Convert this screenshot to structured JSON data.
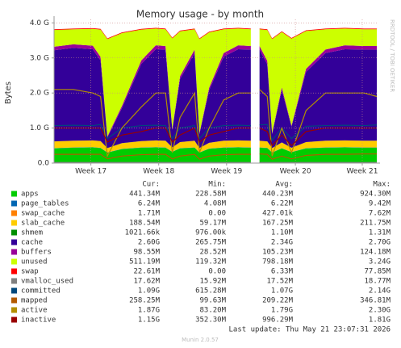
{
  "chart_data": {
    "type": "stacked_area",
    "title": "Memory usage - by month",
    "ylabel": "Bytes",
    "watermark": "RRDTOOL / TOBI OETIKER",
    "last_update": "Last update: Thu May 21 23:07:31 2026",
    "version": "Munin 2.0.57",
    "stat_headers": [
      "Cur:",
      "Min:",
      "Avg:",
      "Max:"
    ],
    "grid": true,
    "xlim": [
      0,
      33.3
    ],
    "xticks": [
      {
        "value": 3.8,
        "label": "Week 17"
      },
      {
        "value": 10.8,
        "label": "Week 18"
      },
      {
        "value": 17.8,
        "label": "Week 19"
      },
      {
        "value": 24.9,
        "label": "Week 20"
      },
      {
        "value": 31.8,
        "label": "Week 21"
      }
    ],
    "ylim": [
      0,
      4100000000.0
    ],
    "yticks": [
      {
        "value": 0,
        "label": "0.0"
      },
      {
        "value": 1000000000.0,
        "label": "1.0 G"
      },
      {
        "value": 2000000000.0,
        "label": "2.0 G"
      },
      {
        "value": 3000000000.0,
        "label": "3.0 G"
      },
      {
        "value": 4000000000.0,
        "label": "4.0 G"
      }
    ],
    "x": [
      0,
      2,
      4,
      4.8,
      5.5,
      7,
      9,
      10.5,
      11.5,
      12.2,
      13,
      14.5,
      15,
      16,
      17.5,
      19,
      20.3,
      20.7,
      21.2,
      22,
      22.5,
      23.5,
      24.5,
      26,
      28,
      30,
      32,
      33.3
    ],
    "series": [
      {
        "name": "apps",
        "color": "#00CC00",
        "kind": "area",
        "cur": "441.34M",
        "min": "228.58M",
        "avg": "440.23M",
        "max": "924.30M",
        "values": [
          420000000.0,
          440000000.0,
          450000000.0,
          430000000.0,
          300000000.0,
          400000000.0,
          440000000.0,
          450000000.0,
          440000000.0,
          320000000.0,
          420000000.0,
          440000000.0,
          300000000.0,
          410000000.0,
          440000000.0,
          450000000.0,
          440000000.0,
          null,
          440000000.0,
          430000000.0,
          300000000.0,
          420000000.0,
          310000000.0,
          420000000.0,
          440000000.0,
          450000000.0,
          440000000.0,
          440000000.0
        ]
      },
      {
        "name": "page_tables",
        "color": "#0066B3",
        "kind": "area",
        "cur": "6.24M",
        "min": "4.08M",
        "avg": "6.22M",
        "max": "9.42M",
        "values": [
          6000000.0,
          6000000.0,
          6000000.0,
          6000000.0,
          6000000.0,
          6000000.0,
          6000000.0,
          6000000.0,
          6000000.0,
          6000000.0,
          6000000.0,
          6000000.0,
          6000000.0,
          6000000.0,
          6000000.0,
          6000000.0,
          6000000.0,
          null,
          6000000.0,
          6000000.0,
          6000000.0,
          6000000.0,
          6000000.0,
          6000000.0,
          6000000.0,
          6000000.0,
          6000000.0,
          6000000.0
        ]
      },
      {
        "name": "swap_cache",
        "color": "#FF8000",
        "kind": "area",
        "cur": "1.71M",
        "min": "0.00",
        "avg": "427.01k",
        "max": "7.62M",
        "values": [
          2000000.0,
          2000000.0,
          2000000.0,
          2000000.0,
          2000000.0,
          2000000.0,
          2000000.0,
          2000000.0,
          2000000.0,
          2000000.0,
          2000000.0,
          2000000.0,
          2000000.0,
          2000000.0,
          2000000.0,
          2000000.0,
          2000000.0,
          null,
          2000000.0,
          2000000.0,
          2000000.0,
          2000000.0,
          2000000.0,
          2000000.0,
          2000000.0,
          2000000.0,
          2000000.0,
          2000000.0
        ]
      },
      {
        "name": "slab_cache",
        "color": "#FFCC00",
        "kind": "area",
        "cur": "188.54M",
        "min": "59.17M",
        "avg": "167.25M",
        "max": "211.75M",
        "values": [
          190000000.0,
          190000000.0,
          190000000.0,
          190000000.0,
          120000000.0,
          160000000.0,
          180000000.0,
          190000000.0,
          190000000.0,
          120000000.0,
          170000000.0,
          190000000.0,
          120000000.0,
          160000000.0,
          190000000.0,
          190000000.0,
          190000000.0,
          null,
          190000000.0,
          180000000.0,
          120000000.0,
          160000000.0,
          120000000.0,
          170000000.0,
          190000000.0,
          190000000.0,
          190000000.0,
          190000000.0
        ]
      },
      {
        "name": "shmem",
        "color": "#008F00",
        "kind": "area",
        "cur": "1021.66k",
        "min": "976.00k",
        "avg": "1.10M",
        "max": "1.31M",
        "values": [
          1000000.0,
          1000000.0,
          1000000.0,
          1000000.0,
          1000000.0,
          1000000.0,
          1000000.0,
          1000000.0,
          1000000.0,
          1000000.0,
          1000000.0,
          1000000.0,
          1000000.0,
          1000000.0,
          1000000.0,
          1000000.0,
          1000000.0,
          null,
          1000000.0,
          1000000.0,
          1000000.0,
          1000000.0,
          1000000.0,
          1000000.0,
          1000000.0,
          1000000.0,
          1000000.0,
          1000000.0
        ]
      },
      {
        "name": "cache",
        "color": "#330099",
        "kind": "area",
        "cur": "2.60G",
        "min": "265.75M",
        "avg": "2.34G",
        "max": "2.70G",
        "values": [
          2600000000.0,
          2650000000.0,
          2600000000.0,
          2300000000.0,
          300000000.0,
          1000000000.0,
          2200000000.0,
          2600000000.0,
          2600000000.0,
          500000000.0,
          1800000000.0,
          2500000000.0,
          400000000.0,
          1500000000.0,
          2400000000.0,
          2600000000.0,
          2600000000.0,
          null,
          2600000000.0,
          2200000000.0,
          400000000.0,
          1500000000.0,
          600000000.0,
          2000000000.0,
          2500000000.0,
          2600000000.0,
          2600000000.0,
          2600000000.0
        ]
      },
      {
        "name": "buffers",
        "color": "#990099",
        "kind": "area",
        "cur": "98.55M",
        "min": "28.52M",
        "avg": "105.23M",
        "max": "124.18M",
        "values": [
          100000000.0,
          100000000.0,
          100000000.0,
          100000000.0,
          30000000.0,
          60000000.0,
          100000000.0,
          110000000.0,
          100000000.0,
          30000000.0,
          80000000.0,
          100000000.0,
          30000000.0,
          70000000.0,
          100000000.0,
          110000000.0,
          100000000.0,
          null,
          100000000.0,
          100000000.0,
          30000000.0,
          70000000.0,
          30000000.0,
          90000000.0,
          100000000.0,
          110000000.0,
          100000000.0,
          100000000.0
        ]
      },
      {
        "name": "unused",
        "color": "#CCFF00",
        "kind": "area",
        "cur": "511.19M",
        "min": "119.32M",
        "avg": "798.18M",
        "max": "3.24G",
        "values": [
          480000000.0,
          430000000.0,
          480000000.0,
          780000000.0,
          2780000000.0,
          2080000000.0,
          880000000.0,
          480000000.0,
          480000000.0,
          2580000000.0,
          1280000000.0,
          580000000.0,
          2680000000.0,
          1580000000.0,
          680000000.0,
          480000000.0,
          480000000.0,
          null,
          480000000.0,
          880000000.0,
          2680000000.0,
          1580000000.0,
          2480000000.0,
          1080000000.0,
          580000000.0,
          480000000.0,
          480000000.0,
          480000000.0
        ]
      },
      {
        "name": "swap",
        "color": "#FF0000",
        "kind": "area",
        "cur": "22.61M",
        "min": "0.00",
        "avg": "6.33M",
        "max": "77.85M",
        "values": [
          20000000.0,
          20000000.0,
          20000000.0,
          20000000.0,
          20000000.0,
          20000000.0,
          20000000.0,
          20000000.0,
          20000000.0,
          20000000.0,
          20000000.0,
          20000000.0,
          20000000.0,
          20000000.0,
          20000000.0,
          20000000.0,
          20000000.0,
          null,
          20000000.0,
          20000000.0,
          20000000.0,
          20000000.0,
          20000000.0,
          20000000.0,
          20000000.0,
          20000000.0,
          20000000.0,
          20000000.0
        ]
      },
      {
        "name": "vmalloc_used",
        "color": "#808080",
        "kind": "line",
        "cur": "17.62M",
        "min": "15.92M",
        "avg": "17.52M",
        "max": "18.77M",
        "values": [
          18000000.0,
          18000000.0,
          18000000.0,
          18000000.0,
          18000000.0,
          18000000.0,
          18000000.0,
          18000000.0,
          18000000.0,
          18000000.0,
          18000000.0,
          18000000.0,
          18000000.0,
          18000000.0,
          18000000.0,
          18000000.0,
          18000000.0,
          null,
          18000000.0,
          18000000.0,
          18000000.0,
          18000000.0,
          18000000.0,
          18000000.0,
          18000000.0,
          18000000.0,
          18000000.0,
          18000000.0
        ]
      },
      {
        "name": "committed",
        "color": "#00487D",
        "kind": "line",
        "cur": "1.09G",
        "min": "615.28M",
        "avg": "1.07G",
        "max": "2.14G",
        "values": [
          1070000000.0,
          1080000000.0,
          1070000000.0,
          1100000000.0,
          700000000.0,
          1000000000.0,
          1070000000.0,
          1080000000.0,
          1070000000.0,
          700000000.0,
          1000000000.0,
          1070000000.0,
          700000000.0,
          1000000000.0,
          1070000000.0,
          1080000000.0,
          1070000000.0,
          null,
          1090000000.0,
          1100000000.0,
          650000000.0,
          1000000000.0,
          700000000.0,
          1050000000.0,
          1070000000.0,
          1080000000.0,
          1070000000.0,
          1090000000.0
        ]
      },
      {
        "name": "mapped",
        "color": "#B35A00",
        "kind": "line",
        "cur": "258.25M",
        "min": "99.63M",
        "avg": "209.22M",
        "max": "346.81M",
        "values": [
          250000000.0,
          250000000.0,
          250000000.0,
          250000000.0,
          120000000.0,
          200000000.0,
          240000000.0,
          250000000.0,
          250000000.0,
          120000000.0,
          200000000.0,
          250000000.0,
          110000000.0,
          200000000.0,
          240000000.0,
          250000000.0,
          250000000.0,
          null,
          260000000.0,
          250000000.0,
          110000000.0,
          200000000.0,
          120000000.0,
          220000000.0,
          250000000.0,
          250000000.0,
          260000000.0,
          260000000.0
        ]
      },
      {
        "name": "active",
        "color": "#B38F00",
        "kind": "line",
        "cur": "1.87G",
        "min": "83.20M",
        "avg": "1.79G",
        "max": "2.30G",
        "values": [
          2100000000.0,
          2100000000.0,
          2000000000.0,
          1900000000.0,
          200000000.0,
          1000000000.0,
          1600000000.0,
          2000000000.0,
          2000000000.0,
          300000000.0,
          1300000000.0,
          2000000000.0,
          300000000.0,
          1000000000.0,
          1800000000.0,
          2000000000.0,
          2000000000.0,
          null,
          2100000000.0,
          1900000000.0,
          200000000.0,
          1000000000.0,
          300000000.0,
          1500000000.0,
          2000000000.0,
          2000000000.0,
          2000000000.0,
          1900000000.0
        ]
      },
      {
        "name": "inactive",
        "color": "#990000",
        "kind": "line",
        "cur": "1.15G",
        "min": "352.30M",
        "avg": "996.29M",
        "max": "1.81G",
        "values": [
          1000000000.0,
          1000000000.0,
          1000000000.0,
          1000000000.0,
          600000000.0,
          800000000.0,
          900000000.0,
          1000000000.0,
          1000000000.0,
          600000000.0,
          800000000.0,
          1000000000.0,
          600000000.0,
          800000000.0,
          900000000.0,
          1000000000.0,
          1000000000.0,
          null,
          1000000000.0,
          900000000.0,
          500000000.0,
          800000000.0,
          500000000.0,
          900000000.0,
          1000000000.0,
          1000000000.0,
          1000000000.0,
          1000000000.0
        ]
      }
    ]
  }
}
